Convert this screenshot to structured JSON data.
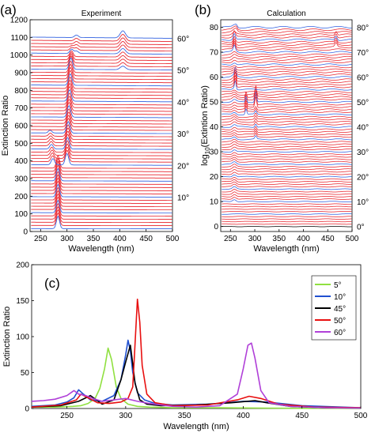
{
  "chart_data": [
    {
      "panel_label": "(a)",
      "type": "line",
      "title": "Experiment",
      "xlabel": "Wavelength (nm)",
      "ylabel": "Extinction Ratio",
      "xlim": [
        230,
        500
      ],
      "ylim": [
        0,
        1200
      ],
      "xticks": [
        "250",
        "300",
        "350",
        "400",
        "450",
        "500"
      ],
      "yticks": [
        "0",
        "100",
        "200",
        "300",
        "400",
        "500",
        "600",
        "700",
        "800",
        "900",
        "1000",
        "1100",
        "1200"
      ],
      "angle_labels": [
        "10°",
        "20°",
        "30°",
        "40°",
        "50°",
        "60°"
      ],
      "stack": {
        "count": 61,
        "offset_per_angle": 18,
        "highlight_every": 5
      },
      "colors": {
        "regular": "#e8202a",
        "highlight": "#2f5fe0"
      }
    },
    {
      "panel_label": "(b)",
      "type": "line",
      "title": "Calculation",
      "xlabel": "Wavelength (nm)",
      "ylabel": "log10(Extintion Ratio)",
      "xlim": [
        230,
        500
      ],
      "ylim": [
        -2,
        83
      ],
      "xticks": [
        "250",
        "300",
        "350",
        "400",
        "450",
        "500"
      ],
      "yticks": [
        "0",
        "10",
        "20",
        "30",
        "40",
        "50",
        "60",
        "70",
        "80"
      ],
      "angle_labels": [
        "0°",
        "10°",
        "20°",
        "30°",
        "40°",
        "50°",
        "60°",
        "70°",
        "80°"
      ],
      "stack": {
        "count": 81,
        "offset_per_angle": 1,
        "highlight_every": 5
      },
      "colors": {
        "regular": "#e8202a",
        "highlight": "#2f5fe0",
        "baseline": "#000000"
      }
    },
    {
      "panel_label": "(c)",
      "type": "line",
      "title": "",
      "xlabel": "Wavelength (nm)",
      "ylabel": "Extinction Ratio",
      "xlim": [
        220,
        500
      ],
      "ylim": [
        0,
        200
      ],
      "xticks": [
        "250",
        "300",
        "350",
        "400",
        "450",
        "500"
      ],
      "yticks": [
        "0",
        "50",
        "100",
        "150",
        "200"
      ],
      "legend": "top-right",
      "series": [
        {
          "name": "5°",
          "color": "#90e040",
          "x": [
            220,
            240,
            255,
            262,
            268,
            274,
            278,
            282,
            285,
            288,
            292,
            296,
            302,
            310,
            320,
            340,
            380,
            420,
            450,
            500
          ],
          "y": [
            2,
            2,
            3,
            4,
            7,
            14,
            28,
            55,
            84,
            68,
            30,
            14,
            6,
            3,
            2,
            1,
            1,
            0.5,
            0.3,
            0.2
          ]
        },
        {
          "name": "10°",
          "color": "#2050d0",
          "x": [
            220,
            240,
            250,
            256,
            260,
            264,
            270,
            280,
            290,
            296,
            300,
            302,
            304,
            306,
            310,
            316,
            325,
            340,
            370,
            400,
            420,
            450,
            500
          ],
          "y": [
            3,
            5,
            9,
            15,
            26,
            20,
            12,
            10,
            18,
            40,
            75,
            95,
            80,
            50,
            22,
            12,
            7,
            5,
            6,
            10,
            9,
            4,
            1
          ]
        },
        {
          "name": "45°",
          "color": "#000000",
          "x": [
            220,
            245,
            260,
            270,
            280,
            290,
            296,
            300,
            304,
            306,
            308,
            312,
            318,
            330,
            360,
            390,
            410,
            420,
            440,
            470,
            500
          ],
          "y": [
            2,
            4,
            10,
            18,
            6,
            12,
            40,
            65,
            88,
            62,
            35,
            12,
            6,
            4,
            5,
            8,
            11,
            8,
            3,
            1,
            0.5
          ]
        },
        {
          "name": "50°",
          "color": "#e81010",
          "x": [
            220,
            245,
            258,
            262,
            268,
            276,
            286,
            296,
            302,
            306,
            308,
            310,
            312,
            314,
            318,
            325,
            340,
            370,
            395,
            405,
            415,
            430,
            460,
            500
          ],
          "y": [
            2,
            5,
            12,
            20,
            15,
            8,
            7,
            9,
            14,
            30,
            90,
            152,
            120,
            60,
            20,
            8,
            4,
            5,
            12,
            17,
            14,
            6,
            2,
            1
          ]
        },
        {
          "name": "60°",
          "color": "#b040d8",
          "x": [
            220,
            230,
            240,
            250,
            256,
            260,
            266,
            272,
            280,
            290,
            300,
            310,
            320,
            340,
            360,
            380,
            395,
            400,
            404,
            407,
            410,
            415,
            422,
            440,
            470,
            500
          ],
          "y": [
            10,
            11,
            13,
            18,
            25,
            20,
            18,
            14,
            10,
            12,
            14,
            10,
            7,
            3,
            2,
            4,
            20,
            55,
            88,
            91,
            70,
            25,
            8,
            3,
            1,
            0.5
          ]
        }
      ]
    }
  ]
}
